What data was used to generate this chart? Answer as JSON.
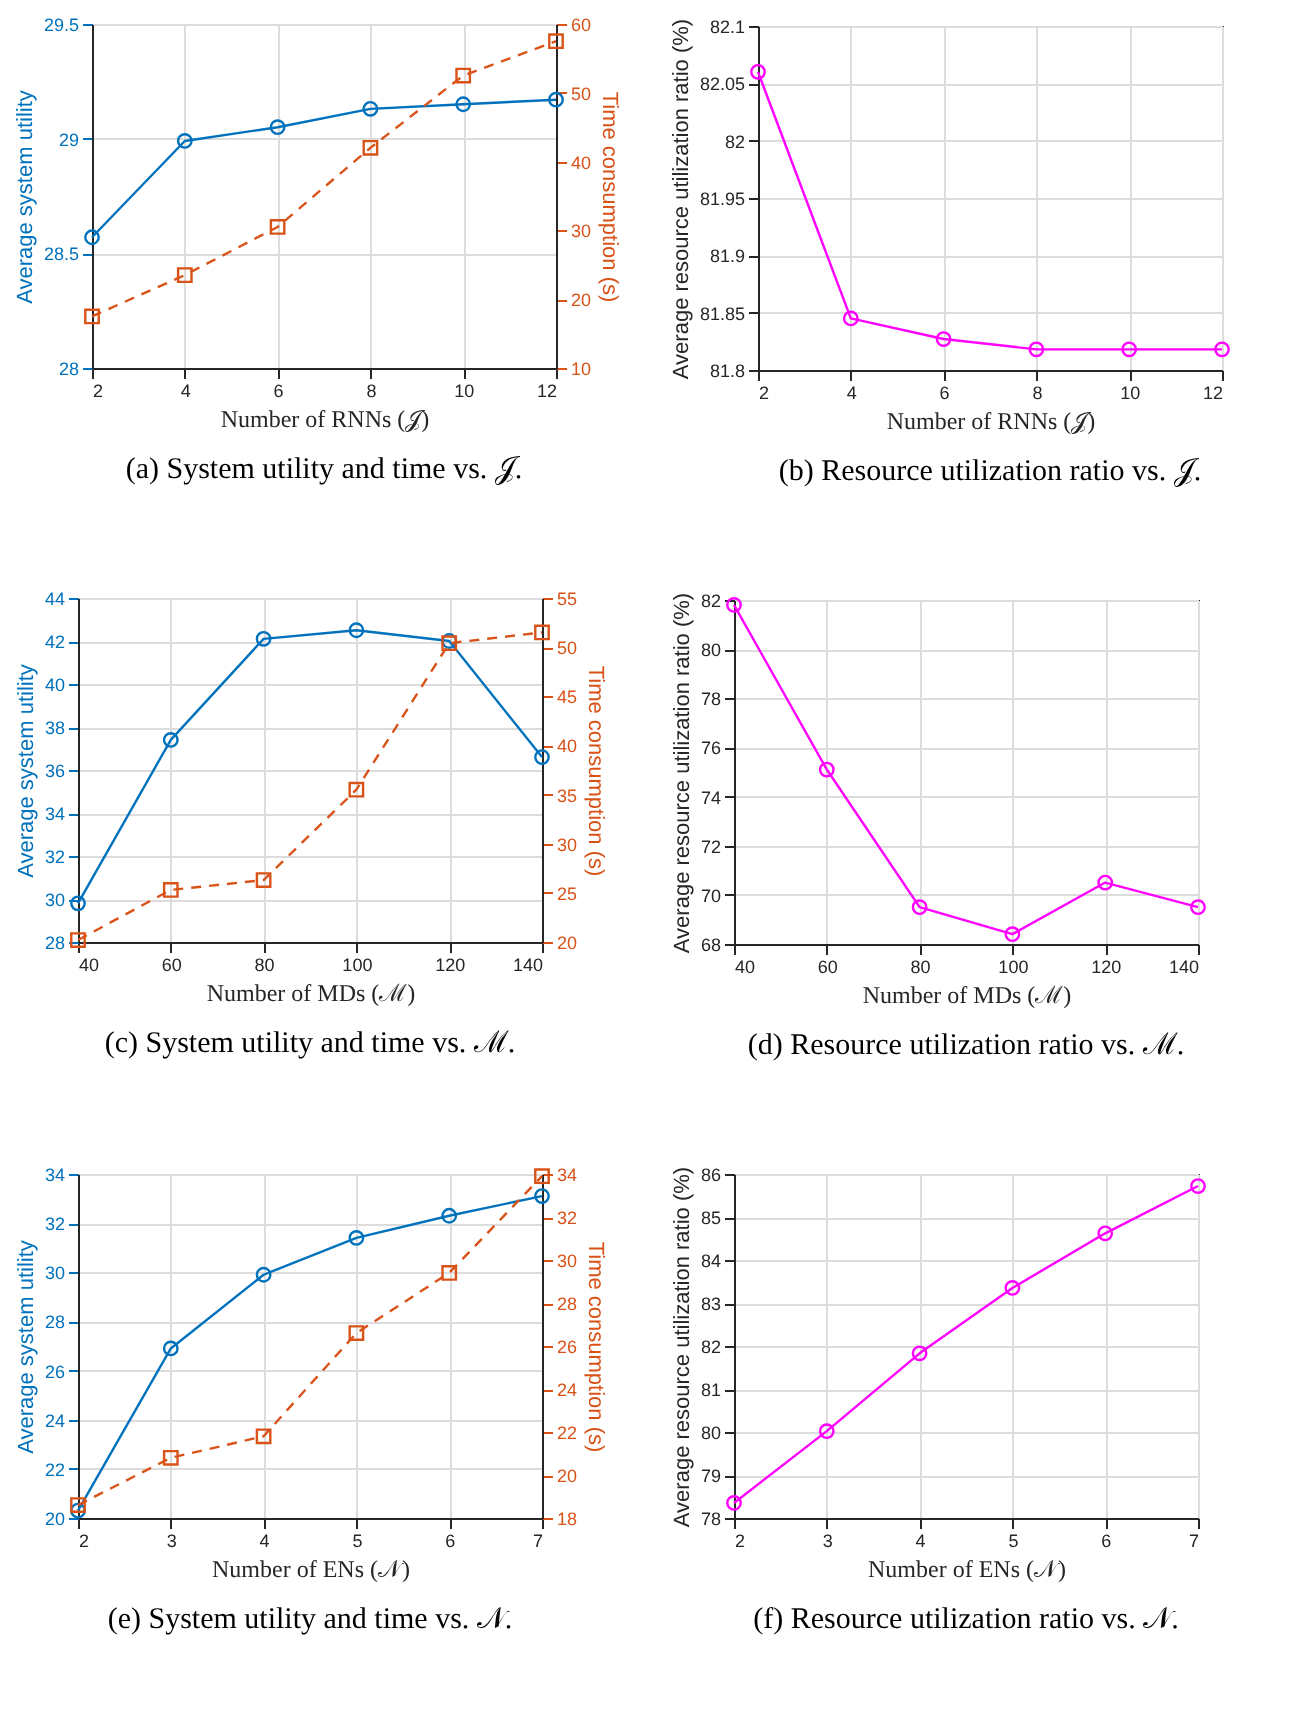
{
  "chart_data": [
    {
      "type": "line",
      "title": "(a) System utility and time vs. 𝒥.",
      "xlabel": "Number of RNNs (𝒥)",
      "ylabel": "Average system utility",
      "y2label": "Time consumption (s)",
      "x": [
        2,
        4,
        6,
        8,
        10,
        12
      ],
      "xlim": [
        2,
        12
      ],
      "xticks": [
        2,
        4,
        6,
        8,
        10,
        12
      ],
      "ylim": [
        28,
        29.5
      ],
      "yticks": [
        28,
        28.5,
        29,
        29.5
      ],
      "y2lim": [
        10,
        60
      ],
      "y2ticks": [
        10,
        20,
        30,
        40,
        50,
        60
      ],
      "grid": true,
      "series": [
        {
          "color": "#0072bd",
          "marker": "circle",
          "line_style": "solid",
          "values": [
            28.57,
            28.99,
            29.05,
            29.13,
            29.15,
            29.17
          ]
        },
        {
          "color": "#d95319",
          "marker": "square",
          "line_style": "dashed",
          "axis": "y2",
          "values": [
            17.5,
            23.5,
            30.5,
            42,
            52.5,
            57.5
          ]
        }
      ]
    },
    {
      "type": "line",
      "title": "(b) Resource utilization ratio vs. 𝒥.",
      "xlabel": "Number of RNNs (𝒥)",
      "ylabel": "Average resource utilization ratio (%)",
      "x": [
        2,
        4,
        6,
        8,
        10,
        12
      ],
      "xlim": [
        2,
        12
      ],
      "xticks": [
        2,
        4,
        6,
        8,
        10,
        12
      ],
      "ylim": [
        81.8,
        82.1
      ],
      "yticks": [
        81.8,
        81.85,
        81.9,
        81.95,
        82,
        82.05,
        82.1
      ],
      "grid": true,
      "series": [
        {
          "color": "#ff00ff",
          "marker": "circle",
          "line_style": "solid",
          "values": [
            82.06,
            81.845,
            81.827,
            81.818,
            81.818,
            81.818
          ]
        }
      ]
    },
    {
      "type": "line",
      "title": "(c) System utility and time vs. ℳ.",
      "xlabel": "Number of MDs (ℳ)",
      "ylabel": "Average system utility",
      "y2label": "Time consumption (s)",
      "x": [
        40,
        60,
        80,
        100,
        120,
        140
      ],
      "xlim": [
        40,
        140
      ],
      "xticks": [
        40,
        60,
        80,
        100,
        120,
        140
      ],
      "ylim": [
        28,
        44
      ],
      "yticks": [
        28,
        30,
        32,
        34,
        36,
        38,
        40,
        42,
        44
      ],
      "y2lim": [
        20,
        55
      ],
      "y2ticks": [
        20,
        25,
        30,
        35,
        40,
        45,
        50,
        55
      ],
      "grid": true,
      "series": [
        {
          "color": "#0072bd",
          "marker": "circle",
          "line_style": "solid",
          "values": [
            29.8,
            37.4,
            42.1,
            42.5,
            42.0,
            36.6
          ]
        },
        {
          "color": "#d95319",
          "marker": "square",
          "line_style": "dashed",
          "axis": "y2",
          "values": [
            20.2,
            25.3,
            26.3,
            35.5,
            50.4,
            51.5
          ]
        }
      ]
    },
    {
      "type": "line",
      "title": "(d) Resource utilization ratio vs. ℳ.",
      "xlabel": "Number of MDs (ℳ)",
      "ylabel": "Average resource utilization ratio (%)",
      "x": [
        40,
        60,
        80,
        100,
        120,
        140
      ],
      "xlim": [
        40,
        140
      ],
      "xticks": [
        40,
        60,
        80,
        100,
        120,
        140
      ],
      "ylim": [
        68,
        82
      ],
      "yticks": [
        68,
        70,
        72,
        74,
        76,
        78,
        80,
        82
      ],
      "grid": true,
      "series": [
        {
          "color": "#ff00ff",
          "marker": "circle",
          "line_style": "solid",
          "values": [
            81.8,
            75.1,
            69.5,
            68.4,
            70.5,
            69.5
          ]
        }
      ]
    },
    {
      "type": "line",
      "title": "(e) System utility and time vs. 𝒩.",
      "xlabel": "Number of ENs (𝒩)",
      "ylabel": "Average system utility",
      "y2label": "Time consumption (s)",
      "x": [
        2,
        3,
        4,
        5,
        6,
        7
      ],
      "xlim": [
        2,
        7
      ],
      "xticks": [
        2,
        3,
        4,
        5,
        6,
        7
      ],
      "ylim": [
        20,
        34
      ],
      "yticks": [
        20,
        22,
        24,
        26,
        28,
        30,
        32,
        34
      ],
      "y2lim": [
        18,
        34
      ],
      "y2ticks": [
        18,
        20,
        22,
        24,
        26,
        28,
        30,
        32,
        34
      ],
      "grid": true,
      "series": [
        {
          "color": "#0072bd",
          "marker": "circle",
          "line_style": "solid",
          "values": [
            20.3,
            26.9,
            29.9,
            31.4,
            32.3,
            33.1
          ]
        },
        {
          "color": "#d95319",
          "marker": "square",
          "line_style": "dashed",
          "axis": "y2",
          "values": [
            18.6,
            20.8,
            21.8,
            26.6,
            29.4,
            33.9
          ]
        }
      ]
    },
    {
      "type": "line",
      "title": "(f) Resource utilization ratio vs. 𝒩.",
      "xlabel": "Number of ENs (𝒩)",
      "ylabel": "Average resource utilization ratio (%)",
      "x": [
        2,
        3,
        4,
        5,
        6,
        7
      ],
      "xlim": [
        2,
        7
      ],
      "xticks": [
        2,
        3,
        4,
        5,
        6,
        7
      ],
      "ylim": [
        78,
        86
      ],
      "yticks": [
        78,
        79,
        80,
        81,
        82,
        83,
        84,
        85,
        86
      ],
      "grid": true,
      "series": [
        {
          "color": "#ff00ff",
          "marker": "circle",
          "line_style": "solid",
          "values": [
            78.35,
            80.02,
            81.83,
            83.35,
            84.62,
            85.72
          ]
        }
      ]
    }
  ]
}
